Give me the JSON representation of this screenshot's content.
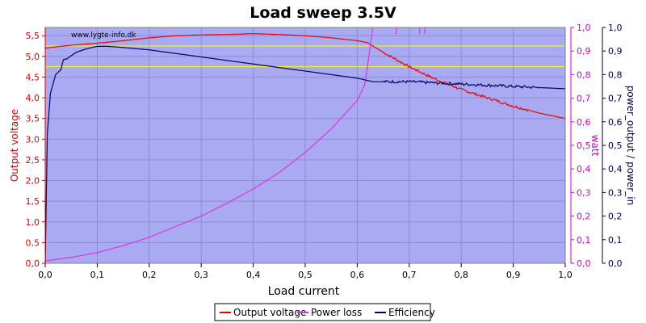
{
  "chart_data": {
    "type": "line",
    "title": "Load sweep 3.5V",
    "xlabel": "Load current",
    "watermark": "www.lygte-info.dk",
    "x_ticks": [
      "0,0",
      "0,1",
      "0,2",
      "0,3",
      "0,4",
      "0,5",
      "0,6",
      "0,7",
      "0,8",
      "0,9",
      "1,0"
    ],
    "xlim": [
      0,
      1.0
    ],
    "axes": {
      "left": {
        "label": "Output voltage",
        "color": "#dd0000",
        "lim": [
          0,
          5.7
        ],
        "ticks": [
          "0,0",
          "0,5",
          "1,0",
          "1,5",
          "2,0",
          "2,5",
          "3,0",
          "3,5",
          "4,0",
          "4,5",
          "5,0",
          "5,5"
        ],
        "tick_values": [
          0,
          0.5,
          1.0,
          1.5,
          2.0,
          2.5,
          3.0,
          3.5,
          4.0,
          4.5,
          5.0,
          5.5
        ]
      },
      "right1": {
        "label": "watt",
        "color": "#cc00cc",
        "lim": [
          0,
          1.0
        ],
        "ticks": [
          "0,0",
          "0,1",
          "0,2",
          "0,3",
          "0,4",
          "0,5",
          "0,6",
          "0,7",
          "0,8",
          "0,9",
          "1,0"
        ],
        "tick_values": [
          0,
          0.1,
          0.2,
          0.3,
          0.4,
          0.5,
          0.6,
          0.7,
          0.8,
          0.9,
          1.0
        ]
      },
      "right2": {
        "label": "power_output / power_in",
        "color": "#000044",
        "lim": [
          0,
          1.0
        ],
        "ticks": [
          "0,0",
          "0,1",
          "0,2",
          "0,3",
          "0,4",
          "0,5",
          "0,6",
          "0,7",
          "0,8",
          "0,9",
          "1,0"
        ],
        "tick_values": [
          0,
          0.1,
          0.2,
          0.3,
          0.4,
          0.5,
          0.6,
          0.7,
          0.8,
          0.9,
          1.0
        ]
      }
    },
    "reference_lines": [
      {
        "axis": "left",
        "y": 5.25,
        "color": "#ffff00"
      },
      {
        "axis": "left",
        "y": 4.75,
        "color": "#ffff00"
      }
    ],
    "plot_background": "#aaaaf2",
    "grid": true,
    "legend_position": "bottom-center",
    "series": [
      {
        "name": "Output voltage",
        "axis": "left",
        "color": "#ee0000",
        "x": [
          0,
          0.02,
          0.05,
          0.1,
          0.15,
          0.2,
          0.25,
          0.3,
          0.35,
          0.4,
          0.45,
          0.5,
          0.55,
          0.6,
          0.62,
          0.63,
          0.65,
          0.7,
          0.75,
          0.8,
          0.85,
          0.9,
          0.95,
          1.0
        ],
        "y": [
          5.2,
          5.23,
          5.27,
          5.32,
          5.38,
          5.45,
          5.5,
          5.52,
          5.53,
          5.55,
          5.53,
          5.5,
          5.45,
          5.38,
          5.33,
          5.25,
          5.1,
          4.75,
          4.45,
          4.2,
          4.0,
          3.8,
          3.63,
          3.5
        ],
        "noisy_from": 0.65,
        "noisy_to": 0.93,
        "noise": 0.06
      },
      {
        "name": "Power loss",
        "axis": "right1",
        "color": "#dd33dd",
        "x": [
          0,
          0.05,
          0.1,
          0.15,
          0.2,
          0.25,
          0.3,
          0.35,
          0.4,
          0.45,
          0.5,
          0.55,
          0.6,
          0.615,
          0.63
        ],
        "y": [
          0.01,
          0.025,
          0.045,
          0.075,
          0.11,
          0.155,
          0.2,
          0.255,
          0.315,
          0.385,
          0.47,
          0.57,
          0.69,
          0.76,
          1.0
        ],
        "spikes_x": [
          0.675,
          0.72,
          0.73
        ]
      },
      {
        "name": "Efficiency",
        "axis": "right2",
        "color": "#000066",
        "x": [
          0,
          0.004,
          0.01,
          0.02,
          0.03,
          0.035,
          0.04,
          0.06,
          0.08,
          0.1,
          0.12,
          0.15,
          0.2,
          0.25,
          0.3,
          0.35,
          0.4,
          0.45,
          0.5,
          0.55,
          0.6,
          0.63,
          0.65,
          0.7,
          0.75,
          0.8,
          0.85,
          0.9,
          0.95,
          1.0
        ],
        "y": [
          0.0,
          0.55,
          0.72,
          0.8,
          0.82,
          0.865,
          0.865,
          0.895,
          0.91,
          0.92,
          0.92,
          0.915,
          0.905,
          0.89,
          0.875,
          0.86,
          0.845,
          0.83,
          0.815,
          0.8,
          0.785,
          0.77,
          0.77,
          0.77,
          0.765,
          0.76,
          0.755,
          0.75,
          0.745,
          0.74
        ],
        "noisy_from": 0.65,
        "noisy_to": 0.95,
        "noise": 0.012
      }
    ]
  }
}
